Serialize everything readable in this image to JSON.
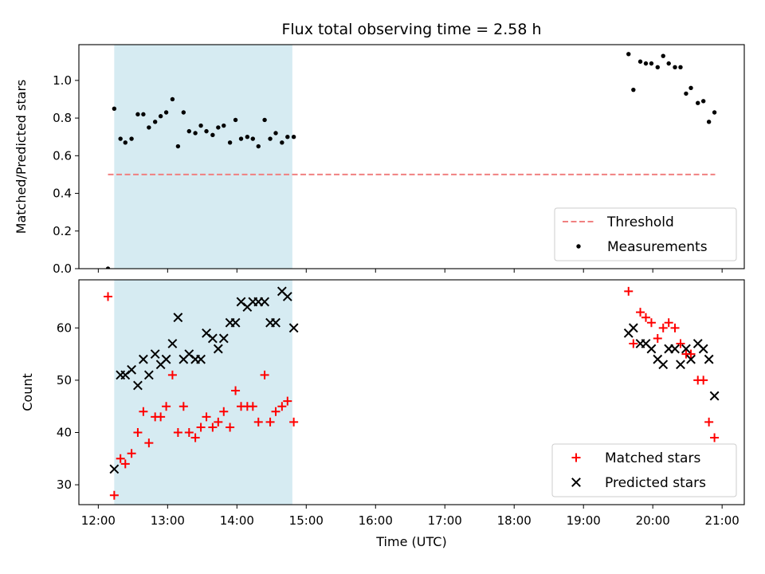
{
  "chart_data": [
    {
      "type": "scatter",
      "title": "Flux total observing time = 2.58 h",
      "xlabel": "",
      "ylabel": "Matched/Predicted stars",
      "ylim": [
        0,
        1.19
      ],
      "yticks": [
        0.0,
        0.2,
        0.4,
        0.6,
        0.8,
        1.0
      ],
      "ytick_labels": [
        "0.0",
        "0.2",
        "0.4",
        "0.6",
        "0.8",
        "1.0"
      ],
      "xlim_hours": [
        11.72,
        21.32
      ],
      "xticks_hours": [
        12,
        13,
        14,
        15,
        16,
        17,
        18,
        19,
        20,
        21
      ],
      "xtick_labels": [],
      "shaded_span_hours": [
        12.23,
        14.8
      ],
      "shaded_color": "#add8e6",
      "legend_position": "lower right",
      "threshold": {
        "name": "Threshold",
        "y": 0.5,
        "x_range_hours": [
          12.14,
          20.9
        ],
        "color": "#f08080"
      },
      "series": [
        {
          "name": "Measurements",
          "color": "#000000",
          "marker": "dot",
          "x": [
            12.14,
            12.23,
            12.32,
            12.39,
            12.48,
            12.57,
            12.65,
            12.73,
            12.82,
            12.9,
            12.98,
            13.07,
            13.15,
            13.23,
            13.31,
            13.4,
            13.48,
            13.56,
            13.65,
            13.73,
            13.81,
            13.9,
            13.98,
            14.06,
            14.15,
            14.23,
            14.31,
            14.4,
            14.48,
            14.56,
            14.65,
            14.73,
            14.82,
            19.65,
            19.72,
            19.82,
            19.9,
            19.98,
            20.07,
            20.15,
            20.23,
            20.32,
            20.4,
            20.48,
            20.55,
            20.65,
            20.73,
            20.81,
            20.89
          ],
          "y": [
            0.0,
            0.85,
            0.69,
            0.67,
            0.69,
            0.82,
            0.82,
            0.75,
            0.78,
            0.81,
            0.83,
            0.9,
            0.65,
            0.83,
            0.73,
            0.72,
            0.76,
            0.73,
            0.71,
            0.75,
            0.76,
            0.67,
            0.79,
            0.69,
            0.7,
            0.69,
            0.65,
            0.79,
            0.69,
            0.72,
            0.67,
            0.7,
            0.7,
            1.14,
            0.95,
            1.1,
            1.09,
            1.09,
            1.07,
            1.13,
            1.09,
            1.07,
            1.07,
            0.93,
            0.96,
            0.88,
            0.89,
            0.78,
            0.83
          ]
        }
      ]
    },
    {
      "type": "scatter",
      "title": "",
      "xlabel": "Time (UTC)",
      "ylabel": "Count",
      "ylim": [
        26.2,
        69.2
      ],
      "yticks": [
        30,
        40,
        50,
        60
      ],
      "ytick_labels": [
        "30",
        "40",
        "50",
        "60"
      ],
      "xlim_hours": [
        11.72,
        21.32
      ],
      "xticks_hours": [
        12,
        13,
        14,
        15,
        16,
        17,
        18,
        19,
        20,
        21
      ],
      "xtick_labels": [
        "12:00",
        "13:00",
        "14:00",
        "15:00",
        "16:00",
        "17:00",
        "18:00",
        "19:00",
        "20:00",
        "21:00"
      ],
      "shaded_span_hours": [
        12.23,
        14.8
      ],
      "shaded_color": "#add8e6",
      "legend_position": "lower right",
      "series": [
        {
          "name": "Matched stars",
          "color": "#ff0000",
          "marker": "plus",
          "x": [
            12.14,
            12.23,
            12.32,
            12.39,
            12.48,
            12.57,
            12.65,
            12.73,
            12.82,
            12.9,
            12.98,
            13.07,
            13.15,
            13.23,
            13.31,
            13.4,
            13.48,
            13.56,
            13.65,
            13.73,
            13.81,
            13.9,
            13.98,
            14.06,
            14.15,
            14.23,
            14.31,
            14.4,
            14.48,
            14.56,
            14.65,
            14.73,
            14.82,
            19.65,
            19.72,
            19.82,
            19.9,
            19.98,
            20.07,
            20.15,
            20.23,
            20.32,
            20.4,
            20.48,
            20.55,
            20.65,
            20.73,
            20.81,
            20.89
          ],
          "y": [
            66,
            28,
            35,
            34,
            36,
            40,
            44,
            38,
            43,
            43,
            45,
            51,
            40,
            45,
            40,
            39,
            41,
            43,
            41,
            42,
            44,
            41,
            48,
            45,
            45,
            45,
            42,
            51,
            42,
            44,
            45,
            46,
            42,
            67,
            57,
            63,
            62,
            61,
            58,
            60,
            61,
            60,
            57,
            55,
            55,
            50,
            50,
            42,
            39
          ]
        },
        {
          "name": "Predicted stars",
          "color": "#000000",
          "marker": "x",
          "x": [
            12.23,
            12.32,
            12.39,
            12.48,
            12.57,
            12.65,
            12.73,
            12.82,
            12.9,
            12.98,
            13.07,
            13.15,
            13.23,
            13.31,
            13.4,
            13.48,
            13.56,
            13.65,
            13.73,
            13.81,
            13.9,
            13.98,
            14.06,
            14.15,
            14.23,
            14.31,
            14.4,
            14.48,
            14.56,
            14.65,
            14.73,
            14.82,
            19.65,
            19.72,
            19.82,
            19.9,
            19.98,
            20.07,
            20.15,
            20.23,
            20.32,
            20.4,
            20.48,
            20.55,
            20.65,
            20.73,
            20.81,
            20.89
          ],
          "y": [
            33,
            51,
            51,
            52,
            49,
            54,
            51,
            55,
            53,
            54,
            57,
            62,
            54,
            55,
            54,
            54,
            59,
            58,
            56,
            58,
            61,
            61,
            65,
            64,
            65,
            65,
            65,
            61,
            61,
            67,
            66,
            60,
            59,
            60,
            57,
            57,
            56,
            54,
            53,
            56,
            56,
            53,
            56,
            54,
            57,
            56,
            54,
            47
          ]
        }
      ]
    }
  ]
}
